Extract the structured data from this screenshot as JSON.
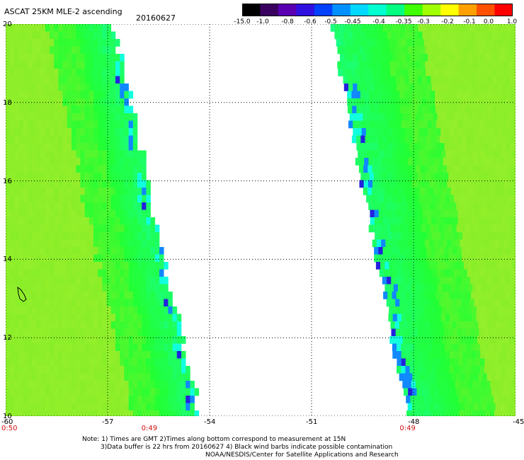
{
  "header": {
    "title": "ASCAT 25KM MLE-2 ascending",
    "date": "20160627"
  },
  "colorbar": {
    "labels": [
      "-15.0",
      "-1.0",
      "-0.8",
      "-0.6",
      "-0.5",
      "-0.45",
      "-0.4",
      "-0.35",
      "-0.3",
      "-0.2",
      "-0.1",
      "0.0",
      "1.0"
    ],
    "colors": [
      "#000000",
      "#3a0060",
      "#5a00b0",
      "#3010e0",
      "#0040ff",
      "#0090ff",
      "#00d8ff",
      "#00ffd0",
      "#00ff80",
      "#40ff00",
      "#a0ff00",
      "#ffff00",
      "#ffa000",
      "#ff5000",
      "#ff0000"
    ]
  },
  "map": {
    "lon_range": [
      -60,
      -45
    ],
    "lat_range": [
      10,
      20
    ],
    "lon_ticks": [
      "-60",
      "-57",
      "-54",
      "-51",
      "-48",
      "-45"
    ],
    "lat_ticks": [
      "10",
      "12",
      "14",
      "16",
      "18",
      "20"
    ],
    "time_labels": [
      {
        "text": "0:50",
        "lon": -60
      },
      {
        "text": "0:49",
        "lon": -55.8
      },
      {
        "text": "0:49",
        "lon": -48.2
      }
    ],
    "colors": {
      "background_green": "#88ee28",
      "green": "#22ff33",
      "cyan": "#11ffdd",
      "blue": "#1188ff",
      "navy": "#2222dd",
      "land_outline": "#000000"
    }
  },
  "notes": {
    "line1": "Note: 1) Times are GMT 2)Times along bottom correspond to measurement at 15N",
    "line2": "3)Data buffer is 22 hrs from 20160627 4) Black wind barbs indicate possible contamination",
    "line3": "NOAA/NESDIS/Center for Satellite Applications and Research"
  }
}
